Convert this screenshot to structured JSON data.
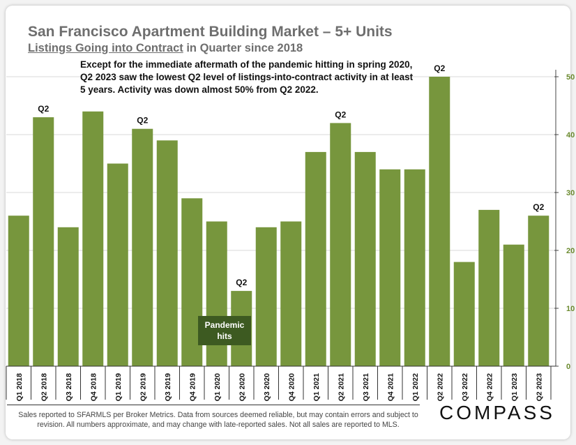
{
  "header": {
    "title": "San Francisco Apartment Building Market – 5+ Units",
    "subtitle_underlined": "Listings Going into Contract",
    "subtitle_rest": " in Quarter since 2018"
  },
  "annotation": {
    "note": "Except for the immediate aftermath of the pandemic hitting in spring 2020, Q2 2023 saw the lowest Q2 level of listings-into-contract activity in at least 5 years. Activity was down almost 50% from Q2 2022.",
    "pandemic": "Pandemic\nhits"
  },
  "footer": {
    "text": "Sales reported to SFARMLS per Broker Metrics. Data from sources deemed reliable, but may contain errors and subject to revision. All numbers approximate, and may change with late-reported sales. Not all sales are reported to MLS.",
    "logo": "COMPASS"
  },
  "colors": {
    "bar": "#77963d",
    "grid": "#d9d9d9",
    "axis_label": "#6b8a2f",
    "pandemic_box": "#3d5a21"
  },
  "chart_data": {
    "type": "bar",
    "title": "Listings Going into Contract in Quarter since 2018",
    "categories": [
      "Q1 2018",
      "Q2 2018",
      "Q3 2018",
      "Q4 2018",
      "Q1 2019",
      "Q2 2019",
      "Q3 2019",
      "Q4 2019",
      "Q1 2020",
      "Q2 2020",
      "Q3 2020",
      "Q4 2020",
      "Q1 2021",
      "Q2 2021",
      "Q3 2021",
      "Q4 2021",
      "Q1 2022",
      "Q2 2022",
      "Q3 2022",
      "Q4 2022",
      "Q1 2023",
      "Q2 2023"
    ],
    "values": [
      26,
      43,
      24,
      44,
      35,
      41,
      39,
      29,
      25,
      13,
      24,
      25,
      37,
      42,
      37,
      34,
      34,
      50,
      18,
      27,
      21,
      26
    ],
    "bar_labels": [
      "",
      "Q2",
      "",
      "",
      "",
      "Q2",
      "",
      "",
      "",
      "Q2",
      "",
      "",
      "",
      "Q2",
      "",
      "",
      "",
      "Q2",
      "",
      "",
      "",
      "Q2"
    ],
    "y_ticks": [
      0,
      10,
      20,
      30,
      40,
      50
    ],
    "ylim": [
      0,
      50
    ],
    "y_axis_side": "right",
    "grid": true,
    "xlabel": "",
    "ylabel": ""
  }
}
